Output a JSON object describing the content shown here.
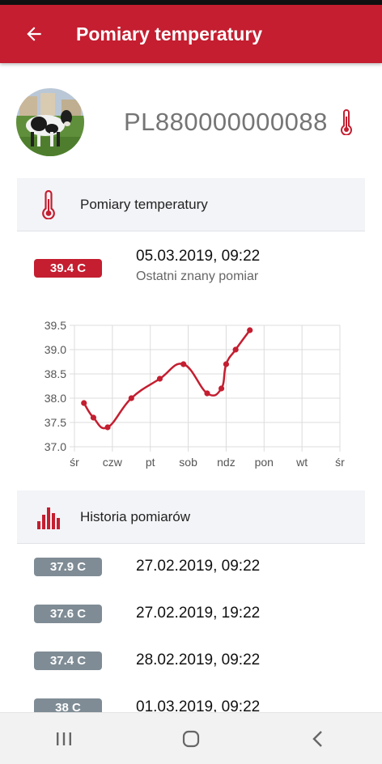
{
  "app_bar": {
    "title": "Pomiary temperatury"
  },
  "profile": {
    "animal_id": "PL880000000088"
  },
  "temperature_section": {
    "title": "Pomiary temperatury"
  },
  "latest": {
    "value": "39.4 C",
    "datetime": "05.03.2019, 09:22",
    "caption": "Ostatni znany pomiar"
  },
  "chart_data": {
    "type": "line",
    "x_labels": [
      "śr",
      "czw",
      "pt",
      "sob",
      "ndz",
      "pon",
      "wt",
      "śr"
    ],
    "y_ticks": [
      "37.0",
      "37.5",
      "38.0",
      "38.5",
      "39.0",
      "39.5"
    ],
    "ylim": [
      37.0,
      39.5
    ],
    "grid": true,
    "color": "#c41e30",
    "series": [
      {
        "x": [
          0.25,
          0.5,
          0.875,
          1.5,
          2.25,
          2.875,
          3.5,
          3.875,
          4.0,
          4.25,
          4.625
        ],
        "y": [
          37.9,
          37.6,
          37.4,
          38.0,
          38.4,
          38.7,
          38.1,
          38.2,
          38.7,
          39.0,
          39.4
        ]
      }
    ]
  },
  "history_section": {
    "title": "Historia pomiarów"
  },
  "history": [
    {
      "value": "37.9 C",
      "datetime": "27.02.2019, 09:22"
    },
    {
      "value": "37.6 C",
      "datetime": "27.02.2019, 19:22"
    },
    {
      "value": "37.4 C",
      "datetime": "28.02.2019, 09:22"
    },
    {
      "value": "38 C",
      "datetime": "01.03.2019, 09:22"
    }
  ],
  "colors": {
    "brand": "#c41e30",
    "badge_gray": "#7f8c95"
  },
  "icons": [
    "back-arrow-icon",
    "thermometer-icon",
    "bar-chart-icon",
    "recent-apps-icon",
    "home-icon",
    "nav-back-icon"
  ]
}
